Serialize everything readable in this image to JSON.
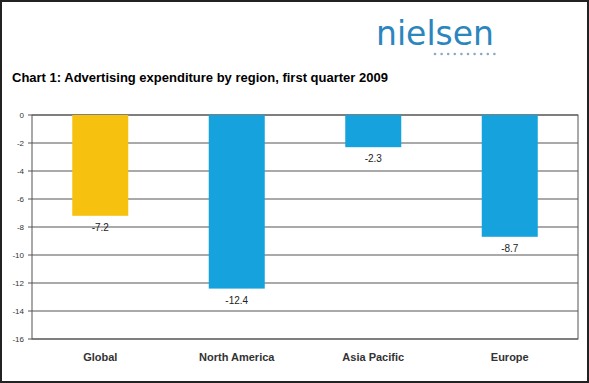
{
  "logo": "nielsen",
  "chart_data": {
    "type": "bar",
    "title": "Chart 1: Advertising expenditure by region, first quarter 2009",
    "categories": [
      "Global",
      "North America",
      "Asia Pacific",
      "Europe"
    ],
    "values": [
      -7.2,
      -12.4,
      -2.3,
      -8.7
    ],
    "colors": [
      "#F7C20F",
      "#16A3DD",
      "#16A3DD",
      "#16A3DD"
    ],
    "ylim": [
      -16,
      0
    ],
    "yticks": [
      0,
      -2,
      -4,
      -6,
      -8,
      -10,
      -12,
      -14,
      -16
    ],
    "grid": true,
    "data_labels": true
  }
}
